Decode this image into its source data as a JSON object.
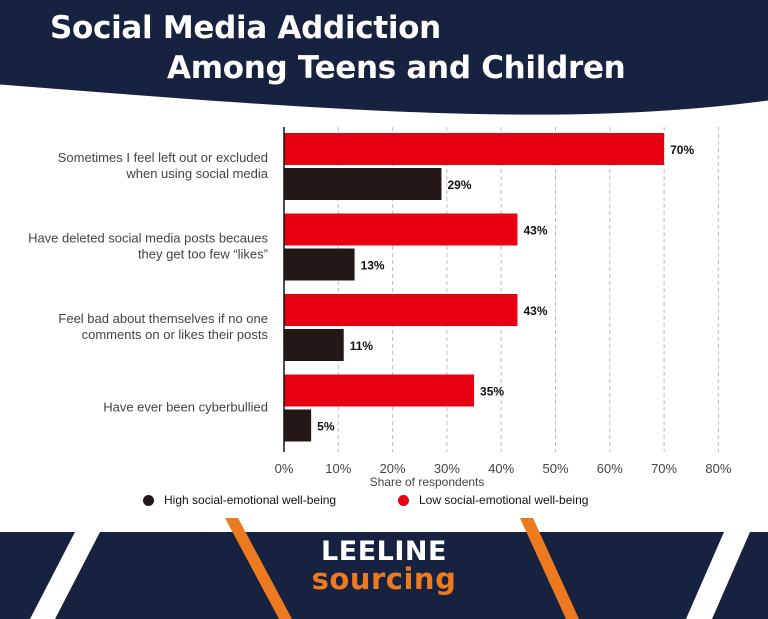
{
  "header": {
    "title_line_1": "Social Media Addiction",
    "title_line_2": "Among Teens and Children"
  },
  "colors": {
    "header_navy": "#16223f",
    "high_series": "#231815",
    "low_series": "#e60012",
    "brand_orange": "#ee7a1f",
    "grid": "#bbbbbb"
  },
  "chart_data": {
    "type": "bar",
    "orientation": "horizontal",
    "categories": [
      [
        "Sometimes I feel left out or excluded",
        "when using social media"
      ],
      [
        "Have deleted social media posts becaues",
        "they get too few “likes”"
      ],
      [
        "Feel bad about themselves if no one",
        "comments on or likes their posts"
      ],
      [
        "Have ever been cyberbullied"
      ]
    ],
    "series": [
      {
        "name": "Low social-emotional well-being",
        "color": "#e60012",
        "values": [
          70,
          43,
          43,
          35
        ],
        "labels": [
          "70%",
          "43%",
          "43%",
          "35%"
        ]
      },
      {
        "name": "High social-emotional well-being",
        "color": "#231815",
        "values": [
          29,
          13,
          11,
          5
        ],
        "labels": [
          "29%",
          "13%",
          "11%",
          "5%"
        ]
      }
    ],
    "xlabel": "Share of respondents",
    "xlim": [
      0,
      80
    ],
    "xticks": [
      0,
      10,
      20,
      30,
      40,
      50,
      60,
      70,
      80
    ],
    "xtick_labels": [
      "0%",
      "10%",
      "20%",
      "30%",
      "40%",
      "50%",
      "60%",
      "70%",
      "80%"
    ],
    "grid": "vertical dashed",
    "legend_placement": "bottom"
  },
  "legend": {
    "high": "High social-emotional well-being",
    "low": "Low social-emotional well-being"
  },
  "footer": {
    "brand_top": "LEELINE",
    "brand_bottom": "sourcing"
  }
}
